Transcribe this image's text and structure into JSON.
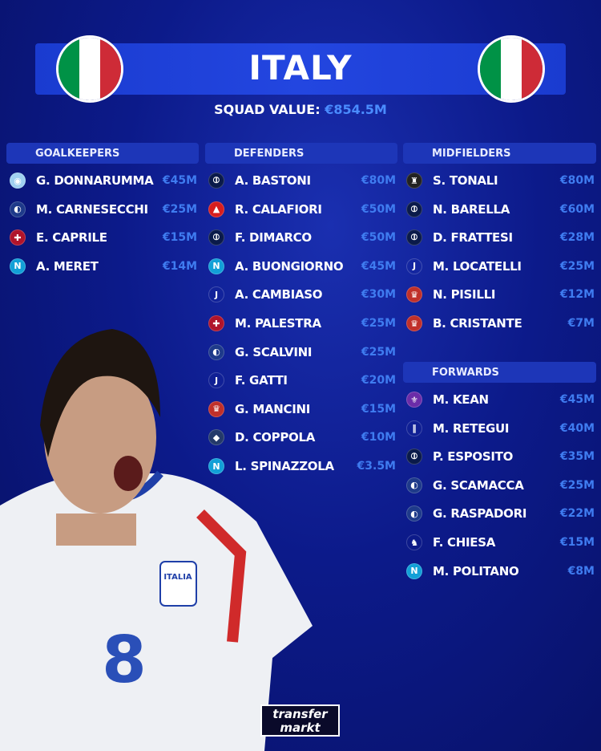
{
  "header": {
    "title": "ITALY",
    "squad_label": "SQUAD VALUE:",
    "squad_value": "€854.5M",
    "flag_colors": [
      "#009246",
      "#ffffff",
      "#ce2b37"
    ]
  },
  "sections": [
    {
      "title": "GOALKEEPERS",
      "players": [
        {
          "name": "G. DONNARUMMA",
          "value": "€45M",
          "club_icon": "man-city-badge"
        },
        {
          "name": "M. CARNESECCHI",
          "value": "€25M",
          "club_icon": "atalanta-badge"
        },
        {
          "name": "E. CAPRILE",
          "value": "€15M",
          "club_icon": "cagliari-badge"
        },
        {
          "name": "A. MERET",
          "value": "€14M",
          "club_icon": "napoli-badge"
        }
      ]
    },
    {
      "title": "DEFENDERS",
      "players": [
        {
          "name": "A. BASTONI",
          "value": "€80M",
          "club_icon": "inter-badge"
        },
        {
          "name": "R. CALAFIORI",
          "value": "€50M",
          "club_icon": "arsenal-badge"
        },
        {
          "name": "F. DIMARCO",
          "value": "€50M",
          "club_icon": "inter-badge"
        },
        {
          "name": "A. BUONGIORNO",
          "value": "€45M",
          "club_icon": "napoli-badge"
        },
        {
          "name": "A. CAMBIASO",
          "value": "€30M",
          "club_icon": "juventus-badge"
        },
        {
          "name": "M. PALESTRA",
          "value": "€25M",
          "club_icon": "cagliari-badge"
        },
        {
          "name": "G. SCALVINI",
          "value": "€25M",
          "club_icon": "atalanta-badge"
        },
        {
          "name": "F. GATTI",
          "value": "€20M",
          "club_icon": "juventus-badge"
        },
        {
          "name": "G. MANCINI",
          "value": "€15M",
          "club_icon": "roma-badge"
        },
        {
          "name": "D. COPPOLA",
          "value": "€10M",
          "club_icon": "paris-fc-badge"
        },
        {
          "name": "L. SPINAZZOLA",
          "value": "€3.5M",
          "club_icon": "napoli-badge"
        }
      ]
    },
    {
      "title": "MIDFIELDERS",
      "players": [
        {
          "name": "S. TONALI",
          "value": "€80M",
          "club_icon": "newcastle-badge"
        },
        {
          "name": "N. BARELLA",
          "value": "€60M",
          "club_icon": "inter-badge"
        },
        {
          "name": "D. FRATTESI",
          "value": "€28M",
          "club_icon": "inter-badge"
        },
        {
          "name": "M. LOCATELLI",
          "value": "€25M",
          "club_icon": "juventus-badge"
        },
        {
          "name": "N. PISILLI",
          "value": "€12M",
          "club_icon": "roma-badge"
        },
        {
          "name": "B. CRISTANTE",
          "value": "€7M",
          "club_icon": "roma-badge"
        }
      ]
    },
    {
      "title": "FORWARDS",
      "players": [
        {
          "name": "M. KEAN",
          "value": "€45M",
          "club_icon": "fiorentina-badge"
        },
        {
          "name": "M. RETEGUI",
          "value": "€40M",
          "club_icon": "al-qadsiah-badge"
        },
        {
          "name": "P. ESPOSITO",
          "value": "€35M",
          "club_icon": "inter-badge"
        },
        {
          "name": "G. SCAMACCA",
          "value": "€25M",
          "club_icon": "atalanta-badge"
        },
        {
          "name": "G. RASPADORI",
          "value": "€22M",
          "club_icon": "atalanta-badge"
        },
        {
          "name": "F. CHIESA",
          "value": "€15M",
          "club_icon": "liverpool-badge"
        },
        {
          "name": "M. POLITANO",
          "value": "€8M",
          "club_icon": "napoli-badge"
        }
      ]
    }
  ],
  "player_image": {
    "shirt_text": "ITALIA",
    "number": "8"
  },
  "logo": {
    "line1": "transfer",
    "line2": "markt"
  },
  "colors": {
    "accent": "#3f7cf0",
    "section_bg": "#1d36b8"
  }
}
